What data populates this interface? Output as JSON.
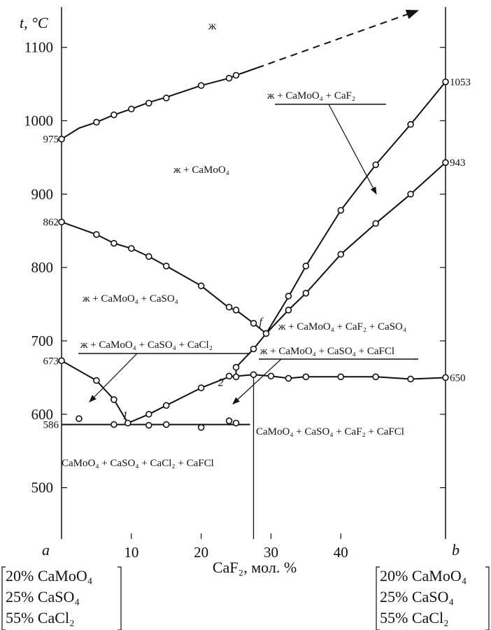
{
  "chart_data": {
    "type": "line",
    "title": "",
    "ylabel": "t, °C",
    "xlabel": "CaF₂, мол. %",
    "xlim": [
      0,
      55
    ],
    "ylim": [
      430,
      1155
    ],
    "x_ticks": [
      10,
      20,
      30,
      40
    ],
    "y_ticks": [
      500,
      600,
      700,
      800,
      900,
      1000,
      1100
    ],
    "end_labels": {
      "left": "a",
      "right": "b"
    },
    "left_composition": [
      "20% CaMoO₄",
      "25% CaSO₄",
      "55% CaCl₂"
    ],
    "right_composition": [
      "20% CaMoO₄",
      "25% CaSO₄",
      "55% CaCl₂"
    ],
    "series": [
      {
        "points": [
          [
            0,
            975
          ],
          [
            2.5,
            990
          ],
          [
            5,
            998
          ],
          [
            7.5,
            1008
          ],
          [
            10,
            1016
          ],
          [
            12.5,
            1025
          ],
          [
            15,
            1032
          ],
          [
            20,
            1048
          ],
          [
            24,
            1058
          ],
          [
            25,
            1062
          ],
          [
            28,
            1072
          ]
        ],
        "style": "solid"
      },
      {
        "points": [
          [
            28,
            1072
          ],
          [
            51,
            1150
          ]
        ],
        "style": "dashed"
      },
      {
        "points": [
          [
            0,
            862
          ],
          [
            5,
            845
          ],
          [
            7.5,
            833
          ],
          [
            10,
            826
          ],
          [
            12.5,
            815
          ],
          [
            15,
            802
          ],
          [
            20,
            775
          ],
          [
            24,
            745
          ],
          [
            25,
            742
          ],
          [
            27.5,
            724
          ],
          [
            29.3,
            710
          ]
        ],
        "style": "solid"
      },
      {
        "points": [
          [
            29.3,
            710
          ],
          [
            32.5,
            760
          ],
          [
            35,
            802
          ],
          [
            40,
            878
          ],
          [
            45,
            940
          ],
          [
            50,
            995
          ],
          [
            55,
            1053
          ]
        ],
        "style": "solid"
      },
      {
        "points": [
          [
            29.3,
            710
          ],
          [
            32.5,
            742
          ],
          [
            35,
            765
          ],
          [
            40,
            818
          ],
          [
            45,
            860
          ],
          [
            50,
            900
          ],
          [
            55,
            943
          ]
        ],
        "style": "solid"
      },
      {
        "points": [
          [
            0,
            673
          ],
          [
            5,
            646
          ],
          [
            7.5,
            620
          ],
          [
            9.5,
            588
          ]
        ],
        "style": "solid"
      },
      {
        "points": [
          [
            9.5,
            588
          ],
          [
            12.5,
            600
          ],
          [
            15,
            612
          ],
          [
            20,
            636
          ],
          [
            24,
            651
          ],
          [
            25,
            652
          ]
        ],
        "style": "solid"
      },
      {
        "points": [
          [
            25,
            652
          ],
          [
            25,
            664
          ],
          [
            27.5,
            689
          ],
          [
            29.3,
            710
          ]
        ],
        "style": "solid"
      },
      {
        "points": [
          [
            24,
            651
          ],
          [
            27.5,
            654
          ],
          [
            30,
            652
          ],
          [
            32.5,
            649
          ],
          [
            35,
            651
          ],
          [
            40,
            651
          ],
          [
            45,
            651
          ],
          [
            50,
            648
          ],
          [
            55,
            650
          ]
        ],
        "style": "solid"
      },
      {
        "points": [
          [
            0,
            586
          ],
          [
            27,
            586
          ]
        ],
        "style": "solid"
      },
      {
        "points": [
          [
            27.5,
            654
          ],
          [
            27.5,
            430
          ]
        ],
        "style": "solid"
      }
    ],
    "markers": [
      [
        0,
        975
      ],
      [
        5,
        998
      ],
      [
        7.5,
        1008
      ],
      [
        10,
        1016
      ],
      [
        12.5,
        1024
      ],
      [
        15,
        1031
      ],
      [
        20,
        1048
      ],
      [
        24,
        1058
      ],
      [
        25,
        1062
      ],
      [
        0,
        862
      ],
      [
        5,
        845
      ],
      [
        7.5,
        833
      ],
      [
        10,
        826
      ],
      [
        12.5,
        815
      ],
      [
        15,
        802
      ],
      [
        20,
        775
      ],
      [
        24,
        746
      ],
      [
        25,
        742
      ],
      [
        27.5,
        724
      ],
      [
        29.3,
        710
      ],
      [
        32.5,
        761
      ],
      [
        35,
        802
      ],
      [
        40,
        878
      ],
      [
        45,
        940
      ],
      [
        50,
        995
      ],
      [
        55,
        1053
      ],
      [
        32.5,
        742
      ],
      [
        35,
        765
      ],
      [
        40,
        818
      ],
      [
        45,
        860
      ],
      [
        50,
        900
      ],
      [
        55,
        943
      ],
      [
        0,
        673
      ],
      [
        5,
        646
      ],
      [
        7.5,
        620
      ],
      [
        9.5,
        588
      ],
      [
        12.5,
        600
      ],
      [
        15,
        612
      ],
      [
        20,
        636
      ],
      [
        24,
        652
      ],
      [
        25,
        664
      ],
      [
        27.5,
        689
      ],
      [
        2.5,
        594
      ],
      [
        7.5,
        586
      ],
      [
        12.5,
        585
      ],
      [
        15,
        586
      ],
      [
        20,
        582
      ],
      [
        24,
        591
      ],
      [
        25,
        588
      ],
      [
        25,
        651
      ],
      [
        27.5,
        654
      ],
      [
        30,
        652
      ],
      [
        32.5,
        649
      ],
      [
        35,
        651
      ],
      [
        40,
        651
      ],
      [
        45,
        651
      ],
      [
        50,
        648
      ],
      [
        55,
        650
      ]
    ],
    "value_labels": [
      {
        "text": "975",
        "x": 0,
        "y": 975,
        "side": "left"
      },
      {
        "text": "862",
        "x": 0,
        "y": 862,
        "side": "left"
      },
      {
        "text": "673",
        "x": 0,
        "y": 673,
        "side": "left"
      },
      {
        "text": "586",
        "x": 0,
        "y": 586,
        "side": "left"
      },
      {
        "text": "1053",
        "x": 55,
        "y": 1053,
        "side": "right"
      },
      {
        "text": "943",
        "x": 55,
        "y": 943,
        "side": "right"
      },
      {
        "text": "650",
        "x": 55,
        "y": 650,
        "side": "right"
      }
    ],
    "point_labels": [
      {
        "text": "1",
        "x": 9.5,
        "y": 588
      },
      {
        "text": "2",
        "x": 24,
        "y": 651
      },
      {
        "text": "f",
        "x": 29.3,
        "y": 710
      }
    ],
    "region_labels": {
      "liquid": "ж",
      "r1": "ж + CaMoO₄",
      "r2": "ж + CaMoO₄ + CaSO₄",
      "r3": "ж + CaMoO₄ + CaSO₄ + CaCl₂",
      "r4": "ж + CaMoO₄ + CaF₂ + CaSO₄",
      "r5": "ж + CaMoO₄ + CaSO₄ + CaFCl",
      "r6": "ж + CaMoO₄ + CaF₂",
      "r7": "CaMoO₄ + CaSO₄ + CaF₂ + CaFCl",
      "r8": "CaMoO₄ + CaSO₄ + CaCl₂ + CaFCl"
    }
  }
}
